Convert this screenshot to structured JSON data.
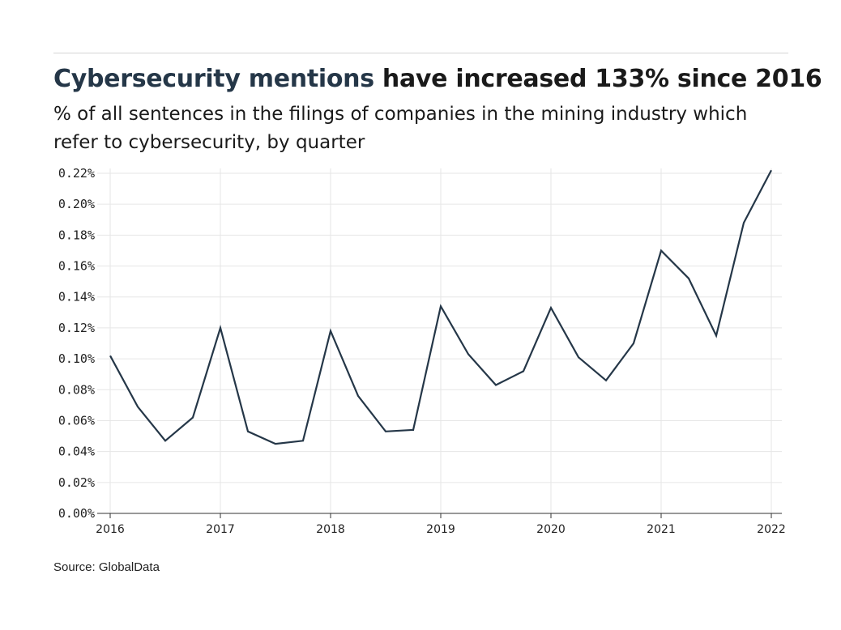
{
  "header": {
    "title_accent": "Cybersecurity mentions",
    "title_rest": " have increased 133% since 2016",
    "subtitle": "% of all sentences in the filings of companies in the mining industry which refer to cybersecurity, by quarter"
  },
  "footer": {
    "source": "Source: GlobalData"
  },
  "colors": {
    "line": "#253748",
    "accent": "#253748",
    "grid": "#e6e6e6"
  },
  "chart_data": {
    "type": "line",
    "title": "Cybersecurity mentions have increased 133% since 2016",
    "subtitle": "% of all sentences in the filings of companies in the mining industry which refer to cybersecurity, by quarter",
    "xlabel": "",
    "ylabel": "",
    "xlim": [
      2016,
      2022
    ],
    "ylim": [
      0,
      0.22
    ],
    "grid": true,
    "x_ticks": [
      2016,
      2017,
      2018,
      2019,
      2020,
      2021,
      2022
    ],
    "x_tick_labels": [
      "2016",
      "2017",
      "2018",
      "2019",
      "2020",
      "2021",
      "2022"
    ],
    "y_ticks": [
      0,
      0.02,
      0.04,
      0.06,
      0.08,
      0.1,
      0.12,
      0.14,
      0.16,
      0.18,
      0.2,
      0.22
    ],
    "y_tick_labels": [
      "0.00%",
      "0.02%",
      "0.04%",
      "0.06%",
      "0.08%",
      "0.10%",
      "0.12%",
      "0.14%",
      "0.16%",
      "0.18%",
      "0.20%",
      "0.22%"
    ],
    "x": [
      2016.0,
      2016.25,
      2016.5,
      2016.75,
      2017.0,
      2017.25,
      2017.5,
      2017.75,
      2018.0,
      2018.25,
      2018.5,
      2018.75,
      2019.0,
      2019.25,
      2019.5,
      2019.75,
      2020.0,
      2020.25,
      2020.5,
      2020.75,
      2021.0,
      2021.25,
      2021.5,
      2021.75,
      2022.0
    ],
    "values": [
      0.102,
      0.069,
      0.047,
      0.062,
      0.12,
      0.053,
      0.045,
      0.047,
      0.118,
      0.076,
      0.053,
      0.054,
      0.134,
      0.103,
      0.083,
      0.092,
      0.133,
      0.101,
      0.086,
      0.11,
      0.17,
      0.152,
      0.115,
      0.188,
      0.222
    ]
  }
}
